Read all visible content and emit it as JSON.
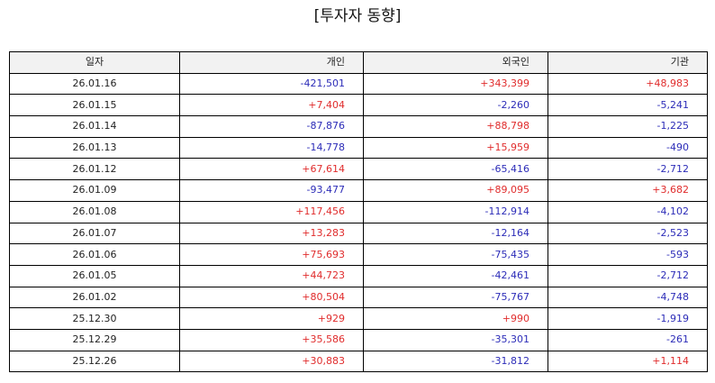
{
  "title": "[투자자 동향]",
  "columns": [
    "일자",
    "개인",
    "외국인",
    "기관"
  ],
  "colors": {
    "positive": "#e02c2c",
    "negative": "#2c2cb8",
    "header_bg": "#f2f2f2"
  },
  "rows": [
    [
      "26.01.16",
      "-421,501",
      "+343,399",
      "+48,983"
    ],
    [
      "26.01.15",
      "+7,404",
      "-2,260",
      "-5,241"
    ],
    [
      "26.01.14",
      "-87,876",
      "+88,798",
      "-1,225"
    ],
    [
      "26.01.13",
      "-14,778",
      "+15,959",
      "-490"
    ],
    [
      "26.01.12",
      "+67,614",
      "-65,416",
      "-2,712"
    ],
    [
      "26.01.09",
      "-93,477",
      "+89,095",
      "+3,682"
    ],
    [
      "26.01.08",
      "+117,456",
      "-112,914",
      "-4,102"
    ],
    [
      "26.01.07",
      "+13,283",
      "-12,164",
      "-2,523"
    ],
    [
      "26.01.06",
      "+75,693",
      "-75,435",
      "-593"
    ],
    [
      "26.01.05",
      "+44,723",
      "-42,461",
      "-2,712"
    ],
    [
      "26.01.02",
      "+80,504",
      "-75,767",
      "-4,748"
    ],
    [
      "25.12.30",
      "+929",
      "+990",
      "-1,919"
    ],
    [
      "25.12.29",
      "+35,586",
      "-35,301",
      "-261"
    ],
    [
      "25.12.26",
      "+30,883",
      "-31,812",
      "+1,114"
    ]
  ]
}
